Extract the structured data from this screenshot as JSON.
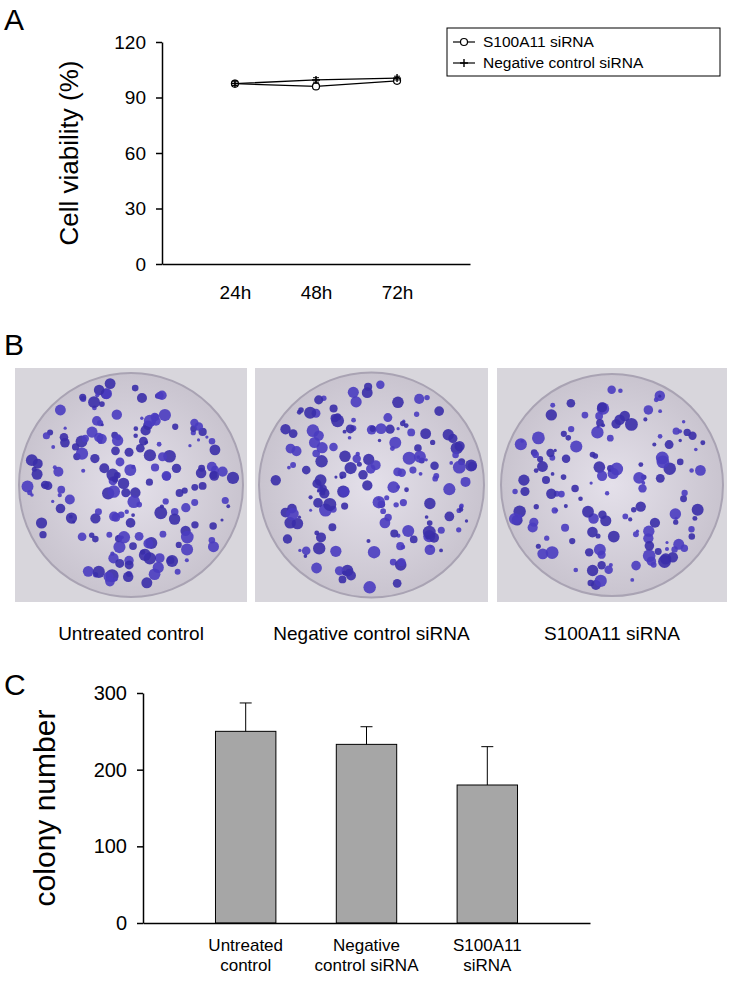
{
  "chart_data": [
    {
      "panel": "A",
      "type": "line",
      "y_label": "Cell viability (%)",
      "categories": [
        "24h",
        "48h",
        "72h"
      ],
      "ylim": [
        0,
        120
      ],
      "yticks": [
        0,
        30,
        60,
        90,
        120
      ],
      "legend": "upper right",
      "series": [
        {
          "name": "S100A11 siRNA",
          "color": "#000000",
          "marker": "circle",
          "values": [
            97.5,
            96,
            99
          ],
          "errors": [
            0.8,
            0.8,
            0.8
          ]
        },
        {
          "name": "Negative control siRNA",
          "color": "#000000",
          "marker": "plus",
          "values": [
            97.5,
            99.5,
            100.5
          ],
          "errors": [
            1,
            1.2,
            1
          ]
        }
      ]
    },
    {
      "panel": "B",
      "type": "image",
      "categories": [
        "Untreated control",
        "Negative control siRNA",
        "S100A11 siRNA"
      ]
    },
    {
      "panel": "C",
      "type": "bar",
      "y_label": "colony number",
      "categories": [
        "Untreated control",
        "Negative control siRNA",
        "S100A11 siRNA"
      ],
      "values": [
        250,
        233,
        180
      ],
      "errors": [
        37,
        23,
        50
      ],
      "color": "#a6a6a6",
      "ylim": [
        0,
        300
      ],
      "yticks": [
        0,
        100,
        200,
        300
      ]
    }
  ]
}
